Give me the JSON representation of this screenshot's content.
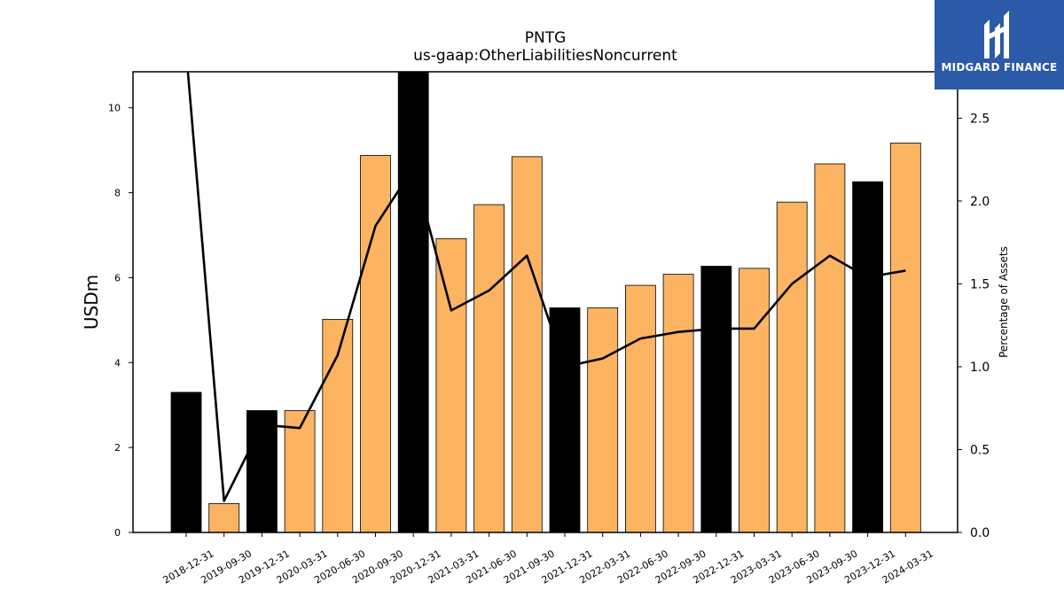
{
  "chart_data": {
    "type": "bar+line",
    "title": "PNTG",
    "subtitle": "us-gaap:OtherLiabilitiesNoncurrent",
    "ylabel": "USDm",
    "y2label": "Percentage of Assets",
    "categories": [
      "2018-12-31",
      "2019-09-30",
      "2019-12-31",
      "2020-03-31",
      "2020-06-30",
      "2020-09-30",
      "2020-12-31",
      "2021-03-31",
      "2021-06-30",
      "2021-09-30",
      "2021-12-31",
      "2022-03-31",
      "2022-06-30",
      "2022-09-30",
      "2022-12-31",
      "2023-03-31",
      "2023-06-30",
      "2023-09-30",
      "2023-12-31",
      "2024-03-31"
    ],
    "bar_values": [
      3.3,
      0.68,
      2.87,
      2.87,
      5.02,
      8.88,
      10.9,
      6.92,
      7.72,
      8.85,
      5.29,
      5.29,
      5.82,
      6.08,
      6.27,
      6.22,
      7.78,
      8.68,
      8.26,
      9.17
    ],
    "bar_kind": [
      "annual",
      "quarter",
      "annual",
      "quarter",
      "quarter",
      "quarter",
      "annual",
      "quarter",
      "quarter",
      "quarter",
      "annual",
      "quarter",
      "quarter",
      "quarter",
      "annual",
      "quarter",
      "quarter",
      "quarter",
      "annual",
      "quarter"
    ],
    "line_values": [
      2.9,
      0.19,
      0.65,
      0.63,
      1.07,
      1.85,
      2.2,
      1.34,
      1.46,
      1.67,
      1.0,
      1.05,
      1.17,
      1.21,
      1.23,
      1.23,
      1.5,
      1.67,
      1.54,
      1.58
    ],
    "ylim": [
      0,
      10.85
    ],
    "y2lim": [
      0,
      2.78
    ],
    "yticks": [
      0,
      2,
      4,
      6,
      8,
      10
    ],
    "y2ticks": [
      "0.0",
      "0.5",
      "1.0",
      "1.5",
      "2.0",
      "2.5"
    ],
    "colors": {
      "annual": "#000000",
      "quarter": "#fdb462",
      "line": "#000000"
    },
    "grid": false,
    "legend": "none"
  },
  "logo": {
    "text": "MIDGARD FINANCE",
    "icon": "midgard-logo-icon"
  }
}
